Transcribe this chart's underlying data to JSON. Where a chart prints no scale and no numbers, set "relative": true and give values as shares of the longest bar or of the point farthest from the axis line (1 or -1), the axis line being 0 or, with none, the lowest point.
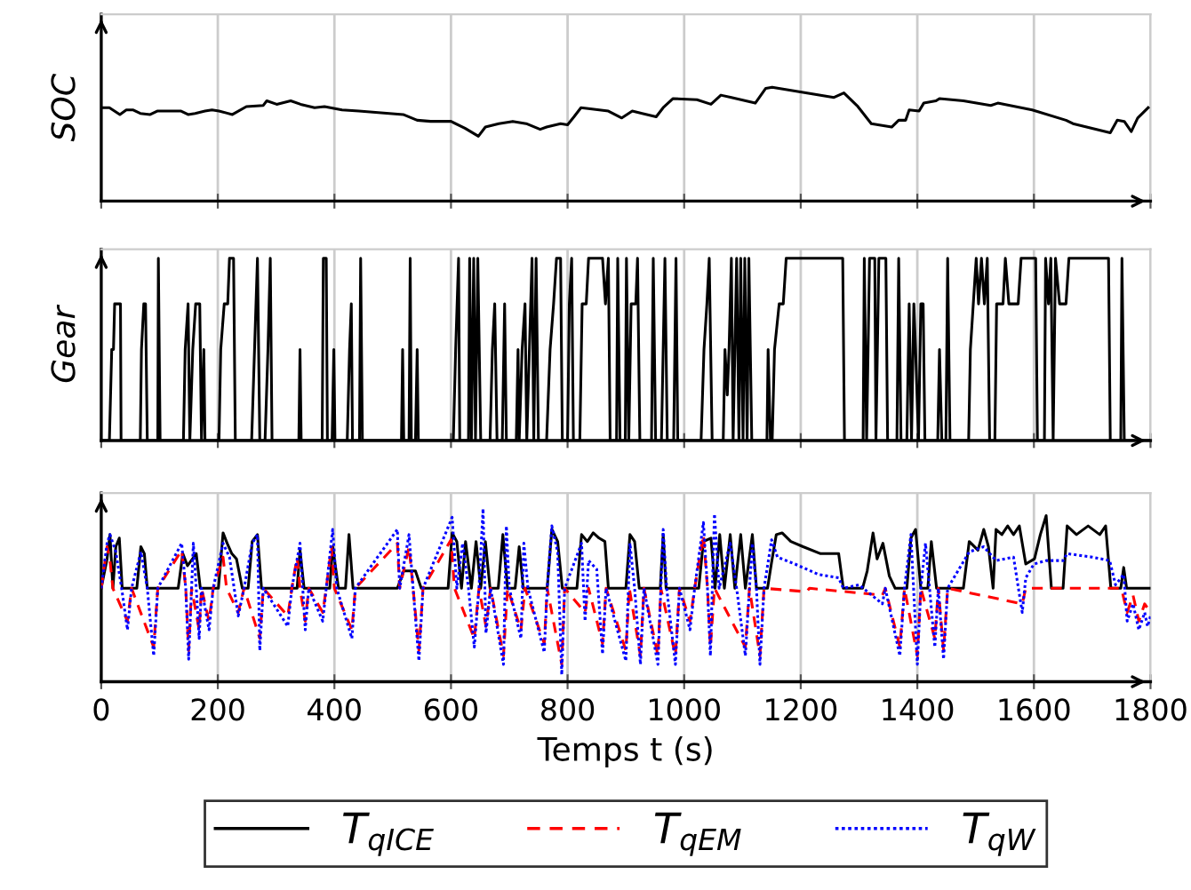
{
  "chart_data": [
    {
      "type": "line",
      "ylabel": "SOC",
      "relative": true,
      "xlim": [
        0,
        1800
      ],
      "xticks": [
        0,
        200,
        400,
        600,
        800,
        1000,
        1200,
        1400,
        1600,
        1800
      ],
      "tick_labels": false,
      "grid": "x",
      "series": [
        {
          "color": "#000000",
          "x": [
            0,
            14,
            32,
            43,
            55,
            67,
            84,
            96,
            137,
            149,
            161,
            178,
            190,
            202,
            225,
            249,
            278,
            284,
            301,
            325,
            342,
            366,
            383,
            413,
            442,
            518,
            542,
            565,
            600,
            624,
            647,
            659,
            682,
            706,
            729,
            753,
            764,
            788,
            800,
            811,
            823,
            870,
            893,
            911,
            928,
            952,
            964,
            981,
            1022,
            1046,
            1063,
            1081,
            1122,
            1140,
            1151,
            1257,
            1274,
            1298,
            1321,
            1356,
            1368,
            1380,
            1386,
            1403,
            1411,
            1432,
            1438,
            1479,
            1526,
            1538,
            1597,
            1655,
            1667,
            1731,
            1743,
            1755,
            1767,
            1778,
            1796
          ],
          "values": [
            0.82,
            0.82,
            0.76,
            0.8,
            0.8,
            0.77,
            0.76,
            0.79,
            0.79,
            0.76,
            0.77,
            0.79,
            0.8,
            0.79,
            0.76,
            0.83,
            0.84,
            0.88,
            0.85,
            0.88,
            0.85,
            0.82,
            0.83,
            0.8,
            0.79,
            0.76,
            0.71,
            0.7,
            0.7,
            0.64,
            0.57,
            0.65,
            0.68,
            0.7,
            0.68,
            0.63,
            0.65,
            0.68,
            0.67,
            0.74,
            0.82,
            0.79,
            0.73,
            0.79,
            0.77,
            0.74,
            0.82,
            0.9,
            0.89,
            0.85,
            0.93,
            0.91,
            0.86,
            0.99,
            1,
            0.91,
            0.95,
            0.83,
            0.68,
            0.65,
            0.71,
            0.71,
            0.8,
            0.79,
            0.86,
            0.88,
            0.9,
            0.88,
            0.84,
            0.86,
            0.8,
            0.71,
            0.68,
            0.6,
            0.71,
            0.7,
            0.61,
            0.73,
            0.82
          ]
        }
      ]
    },
    {
      "type": "line",
      "ylabel": "Gear",
      "relative": true,
      "xlim": [
        0,
        1800
      ],
      "xticks": [
        0,
        200,
        400,
        600,
        800,
        1000,
        1200,
        1400,
        1600,
        1800
      ],
      "tick_labels": false,
      "grid": "x",
      "series": [
        {
          "color": "#000000",
          "x": [
            0,
            14,
            18,
            21,
            23,
            33,
            34,
            67,
            69,
            73,
            76,
            79,
            97,
            98,
            101,
            141,
            144,
            149,
            152,
            157,
            162,
            169,
            172,
            176,
            178,
            202,
            205,
            211,
            217,
            220,
            227,
            230,
            258,
            263,
            268,
            272,
            281,
            286,
            290,
            293,
            339,
            341,
            343,
            379,
            381,
            386,
            388,
            396,
            399,
            401,
            422,
            426,
            429,
            431,
            443,
            445,
            448,
            515,
            517,
            519,
            528,
            530,
            532,
            539,
            542,
            544,
            604,
            608,
            613,
            615,
            630,
            632,
            635,
            639,
            642,
            646,
            651,
            667,
            671,
            675,
            679,
            688,
            692,
            695,
            712,
            715,
            717,
            722,
            727,
            730,
            739,
            742,
            746,
            750,
            764,
            770,
            776,
            781,
            788,
            791,
            800,
            803,
            807,
            810,
            821,
            825,
            832,
            836,
            860,
            865,
            870,
            873,
            884,
            886,
            890,
            899,
            901,
            905,
            909,
            917,
            920,
            924,
            944,
            947,
            951,
            961,
            964,
            967,
            971,
            982,
            986,
            989,
            1029,
            1034,
            1039,
            1043,
            1048,
            1067,
            1070,
            1074,
            1077,
            1081,
            1084,
            1090,
            1094,
            1097,
            1101,
            1104,
            1108,
            1111,
            1116,
            1142,
            1144,
            1148,
            1151,
            1155,
            1163,
            1170,
            1175,
            1272,
            1275,
            1307,
            1309,
            1313,
            1318,
            1327,
            1329,
            1334,
            1346,
            1349,
            1365,
            1368,
            1372,
            1382,
            1386,
            1390,
            1394,
            1397,
            1402,
            1406,
            1410,
            1413,
            1435,
            1438,
            1442,
            1449,
            1452,
            1456,
            1488,
            1491,
            1496,
            1501,
            1505,
            1510,
            1515,
            1520,
            1524,
            1533,
            1536,
            1547,
            1551,
            1557,
            1573,
            1578,
            1603,
            1606,
            1618,
            1620,
            1625,
            1629,
            1633,
            1637,
            1644,
            1655,
            1660,
            1728,
            1731,
            1749,
            1751,
            1755,
            1798
          ],
          "values": [
            0,
            0,
            0.5,
            0.5,
            0.75,
            0.75,
            0,
            0,
            0.5,
            0.75,
            0.75,
            0,
            0,
            1,
            0,
            0,
            0.5,
            0.75,
            0,
            0.5,
            0.75,
            0.75,
            0,
            0.5,
            0,
            0,
            0.5,
            0.75,
            0.75,
            1,
            1,
            0,
            0,
            0.5,
            1,
            0,
            0,
            0.5,
            1,
            0,
            0,
            0.5,
            0,
            0,
            1,
            1,
            0,
            0,
            0.5,
            0,
            0,
            0.5,
            0.75,
            0,
            0,
            1,
            0,
            0,
            0.5,
            0,
            0,
            1,
            0,
            0,
            0.5,
            0,
            0,
            0.5,
            1,
            0,
            0,
            1,
            0,
            1,
            0,
            1,
            0,
            0,
            0.5,
            0.75,
            0,
            0,
            0.75,
            0,
            0,
            0.5,
            0,
            0.5,
            0.75,
            0,
            1,
            0,
            1,
            0,
            0,
            0.5,
            0.75,
            1,
            1,
            0,
            0,
            0.75,
            1,
            0,
            0,
            0.75,
            0.75,
            1,
            1,
            0.75,
            1,
            0,
            0,
            1,
            0,
            0,
            1,
            0,
            0.75,
            0.75,
            1,
            0,
            0,
            1,
            0,
            0,
            0.5,
            1,
            0,
            0,
            1,
            0,
            0,
            0.5,
            0.75,
            1,
            0,
            0,
            0.5,
            0.25,
            0.5,
            1,
            0,
            1,
            0,
            1,
            0,
            1,
            0,
            1,
            0,
            0,
            0.5,
            0,
            0,
            0.5,
            0.75,
            0.75,
            1,
            1,
            0,
            0,
            1,
            0,
            1,
            1,
            0,
            1,
            1,
            0,
            0,
            1,
            0,
            0,
            0.75,
            0,
            0.75,
            0.5,
            0,
            0.75,
            0.75,
            0,
            0,
            0.5,
            0,
            0,
            1,
            0,
            0,
            0.5,
            0.75,
            1,
            0.75,
            1,
            0.75,
            1,
            0,
            0,
            0.75,
            0.75,
            1,
            0.75,
            0.75,
            1,
            1,
            0,
            0,
            1,
            0.75,
            1,
            0,
            1,
            0.75,
            0.75,
            1,
            1,
            0,
            0,
            1,
            0,
            0
          ]
        }
      ]
    },
    {
      "type": "line",
      "xlabel": "Temps t (s)",
      "relative": true,
      "xlim": [
        0,
        1800
      ],
      "xticks": [
        0,
        200,
        400,
        600,
        800,
        1000,
        1200,
        1400,
        1600,
        1800
      ],
      "tick_labels": "x",
      "grid": "x",
      "legend": "bottom",
      "series": [
        {
          "name": "T$_{qICE}$",
          "color": "#000000",
          "line_style": "solid",
          "x": [
            0,
            10,
            15,
            20,
            25,
            31,
            36,
            61,
            68,
            74,
            79,
            132,
            140,
            148,
            163,
            170,
            201,
            209,
            216,
            224,
            232,
            242,
            252,
            259,
            268,
            275,
            336,
            341,
            348,
            392,
            397,
            407,
            419,
            425,
            432,
            508,
            519,
            539,
            549,
            595,
            602,
            610,
            618,
            625,
            635,
            643,
            651,
            659,
            667,
            681,
            689,
            697,
            710,
            717,
            724,
            765,
            773,
            783,
            791,
            816,
            824,
            834,
            844,
            854,
            864,
            870,
            900,
            907,
            915,
            923,
            946,
            959,
            964,
            969,
            1025,
            1033,
            1046,
            1053,
            1061,
            1069,
            1079,
            1087,
            1097,
            1105,
            1117,
            1124,
            1143,
            1150,
            1158,
            1168,
            1183,
            1204,
            1234,
            1265,
            1273,
            1306,
            1314,
            1324,
            1331,
            1341,
            1352,
            1362,
            1382,
            1389,
            1397,
            1406,
            1418,
            1424,
            1433,
            1479,
            1489,
            1504,
            1514,
            1522,
            1530,
            1535,
            1545,
            1555,
            1565,
            1575,
            1586,
            1601,
            1611,
            1621,
            1630,
            1650,
            1657,
            1673,
            1693,
            1713,
            1723,
            1732,
            1749,
            1754,
            1759,
            1800
          ],
          "values": [
            0.54,
            0.71,
            0.85,
            0.54,
            0.78,
            0.83,
            0.54,
            0.54,
            0.78,
            0.74,
            0.54,
            0.54,
            0.74,
            0.67,
            0.74,
            0.54,
            0.54,
            0.86,
            0.8,
            0.74,
            0.71,
            0.54,
            0.54,
            0.81,
            0.85,
            0.54,
            0.54,
            0.76,
            0.54,
            0.54,
            0.78,
            0.54,
            0.54,
            0.85,
            0.54,
            0.54,
            0.64,
            0.64,
            0.54,
            0.54,
            0.86,
            0.81,
            0.54,
            0.81,
            0.54,
            0.81,
            0.54,
            0.81,
            0.54,
            0.54,
            0.85,
            0.54,
            0.54,
            0.78,
            0.54,
            0.54,
            0.88,
            0.81,
            0.54,
            0.54,
            0.85,
            0.81,
            0.86,
            0.83,
            0.81,
            0.54,
            0.54,
            0.85,
            0.81,
            0.54,
            0.54,
            0.54,
            0.85,
            0.54,
            0.54,
            0.81,
            0.83,
            0.54,
            0.85,
            0.54,
            0.85,
            0.54,
            0.85,
            0.54,
            0.85,
            0.54,
            0.54,
            0.69,
            0.85,
            0.86,
            0.81,
            0.78,
            0.74,
            0.74,
            0.54,
            0.54,
            0.64,
            0.86,
            0.71,
            0.8,
            0.61,
            0.54,
            0.54,
            0.83,
            0.88,
            0.54,
            0.54,
            0.81,
            0.54,
            0.54,
            0.81,
            0.76,
            0.88,
            0.78,
            0.54,
            0.88,
            0.85,
            0.9,
            0.85,
            0.9,
            0.68,
            0.71,
            0.85,
            0.96,
            0.54,
            0.54,
            0.9,
            0.85,
            0.9,
            0.85,
            0.9,
            0.54,
            0.54,
            0.66,
            0.54,
            0.54
          ]
        },
        {
          "name": "T$_{qEM}$",
          "color": "#ff0000",
          "line_style": "dashed",
          "x": [
            0,
            10,
            15,
            20,
            45,
            52,
            90,
            97,
            138,
            145,
            150,
            155,
            168,
            172,
            185,
            192,
            209,
            215,
            235,
            245,
            272,
            278,
            320,
            327,
            336,
            341,
            350,
            356,
            380,
            386,
            395,
            400,
            430,
            436,
            508,
            512,
            528,
            535,
            545,
            552,
            600,
            606,
            640,
            648,
            660,
            668,
            690,
            697,
            720,
            727,
            760,
            765,
            790,
            795,
            830,
            836,
            860,
            866,
            900,
            906,
            925,
            931,
            955,
            960,
            985,
            992,
            1010,
            1018,
            1033,
            1040,
            1045,
            1052,
            1105,
            1112,
            1130,
            1137,
            1210,
            1215,
            1340,
            1345,
            1370,
            1378,
            1400,
            1406,
            1430,
            1436,
            1445,
            1452,
            1580,
            1586,
            1750,
            1760,
            1770,
            1780,
            1790,
            1800
          ],
          "values": [
            0.54,
            0.78,
            0.7,
            0.54,
            0.35,
            0.54,
            0.2,
            0.54,
            0.76,
            0.54,
            0.18,
            0.54,
            0.3,
            0.54,
            0.35,
            0.54,
            0.72,
            0.54,
            0.4,
            0.54,
            0.25,
            0.54,
            0.38,
            0.54,
            0.72,
            0.54,
            0.35,
            0.54,
            0.4,
            0.54,
            0.78,
            0.54,
            0.3,
            0.54,
            0.8,
            0.54,
            0.78,
            0.54,
            0.18,
            0.54,
            0.82,
            0.54,
            0.25,
            0.54,
            0.32,
            0.54,
            0.15,
            0.54,
            0.3,
            0.54,
            0.22,
            0.54,
            0.1,
            0.54,
            0.4,
            0.54,
            0.22,
            0.54,
            0.18,
            0.54,
            0.15,
            0.54,
            0.15,
            0.54,
            0.15,
            0.54,
            0.35,
            0.54,
            0.85,
            0.54,
            0.2,
            0.54,
            0.2,
            0.54,
            0.15,
            0.54,
            0.52,
            0.54,
            0.5,
            0.54,
            0.2,
            0.54,
            0.15,
            0.54,
            0.25,
            0.54,
            0.18,
            0.54,
            0.45,
            0.54,
            0.54,
            0.4,
            0.5,
            0.35,
            0.45,
            0.4
          ]
        },
        {
          "name": "T$_{qW}$",
          "color": "#0000ff",
          "line_style": "dotted",
          "x": [
            0,
            10,
            15,
            25,
            35,
            45,
            52,
            68,
            79,
            90,
            97,
            138,
            145,
            150,
            155,
            158,
            163,
            168,
            172,
            185,
            192,
            209,
            220,
            228,
            235,
            245,
            259,
            268,
            272,
            278,
            320,
            327,
            341,
            350,
            356,
            380,
            386,
            397,
            404,
            430,
            436,
            508,
            512,
            528,
            535,
            545,
            552,
            602,
            610,
            620,
            630,
            640,
            648,
            655,
            660,
            668,
            690,
            695,
            700,
            720,
            725,
            732,
            760,
            765,
            773,
            783,
            790,
            795,
            824,
            830,
            836,
            850,
            860,
            866,
            900,
            907,
            915,
            925,
            931,
            955,
            960,
            964,
            970,
            985,
            992,
            1010,
            1018,
            1033,
            1040,
            1045,
            1052,
            1060,
            1079,
            1090,
            1105,
            1112,
            1117,
            1124,
            1130,
            1137,
            1150,
            1160,
            1190,
            1230,
            1265,
            1273,
            1300,
            1340,
            1345,
            1370,
            1378,
            1389,
            1400,
            1406,
            1414,
            1430,
            1436,
            1445,
            1452,
            1489,
            1514,
            1535,
            1565,
            1580,
            1586,
            1600,
            1621,
            1650,
            1657,
            1700,
            1730,
            1740,
            1754,
            1760,
            1770,
            1780,
            1790,
            1795,
            1800
          ],
          "values": [
            0.54,
            0.8,
            0.85,
            0.75,
            0.54,
            0.3,
            0.54,
            0.75,
            0.54,
            0.15,
            0.54,
            0.8,
            0.54,
            0.13,
            0.54,
            0.8,
            0.54,
            0.25,
            0.54,
            0.3,
            0.54,
            0.8,
            0.72,
            0.54,
            0.38,
            0.54,
            0.8,
            0.85,
            0.18,
            0.54,
            0.32,
            0.54,
            0.8,
            0.3,
            0.54,
            0.35,
            0.54,
            0.88,
            0.54,
            0.25,
            0.54,
            0.88,
            0.54,
            0.85,
            0.54,
            0.12,
            0.54,
            0.95,
            0.54,
            0.8,
            0.54,
            0.2,
            0.54,
            1,
            0.28,
            0.54,
            0.1,
            0.9,
            0.54,
            0.25,
            0.8,
            0.54,
            0.17,
            0.54,
            0.9,
            0.75,
            0.04,
            0.54,
            0.8,
            0.35,
            0.7,
            0.65,
            0.16,
            0.54,
            0.12,
            0.8,
            0.54,
            0.1,
            0.54,
            0.1,
            0.54,
            0.88,
            0.54,
            0.1,
            0.54,
            0.3,
            0.54,
            0.92,
            0.54,
            0.15,
            0.97,
            0.54,
            0.8,
            0.54,
            0.15,
            0.54,
            0.8,
            0.54,
            0.1,
            0.54,
            0.82,
            0.72,
            0.68,
            0.62,
            0.6,
            0.54,
            0.56,
            0.45,
            0.54,
            0.15,
            0.54,
            0.85,
            0.1,
            0.54,
            0.8,
            0.2,
            0.54,
            0.13,
            0.54,
            0.75,
            0.78,
            0.7,
            0.72,
            0.4,
            0.6,
            0.68,
            0.7,
            0.7,
            0.74,
            0.72,
            0.7,
            0.56,
            0.62,
            0.35,
            0.45,
            0.3,
            0.4,
            0.32,
            0.38
          ]
        }
      ]
    }
  ]
}
